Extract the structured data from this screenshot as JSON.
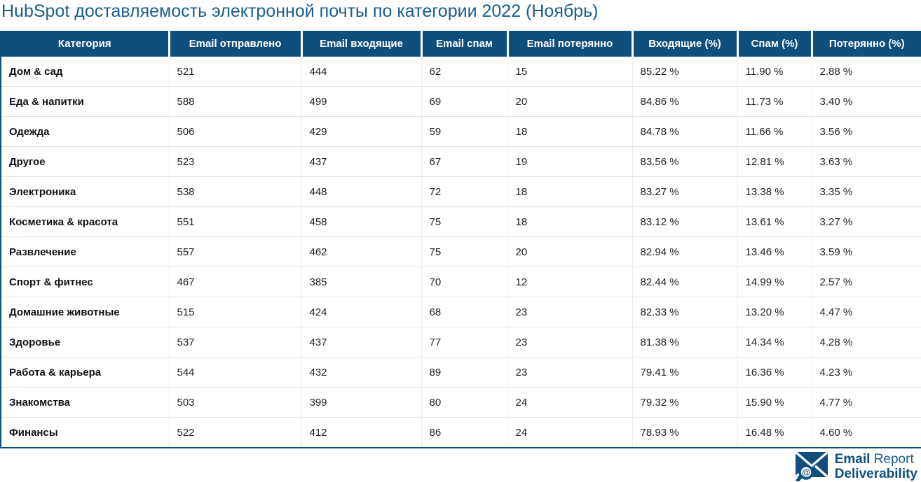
{
  "page": {
    "title": "HubSpot доставляемость электронной почты по категории 2022 (Ноябрь)"
  },
  "colors": {
    "header_background": "#0f4f7d",
    "title_text": "#1a5e8c",
    "table_border": "#0f4f7d",
    "row_divider": "#e3e3e3",
    "logo_blue": "#0f4f7d"
  },
  "table": {
    "columns": [
      "Категория",
      "Email отправлено",
      "Email входящие",
      "Email спам",
      "Email потерянно",
      "Входящие (%)",
      "Спам (%)",
      "Потерянно (%)"
    ],
    "rows": [
      [
        "Дом & сад",
        "521",
        "444",
        "62",
        "15",
        "85.22 %",
        "11.90 %",
        "2.88 %"
      ],
      [
        "Еда & напитки",
        "588",
        "499",
        "69",
        "20",
        "84.86 %",
        "11.73 %",
        "3.40 %"
      ],
      [
        "Одежда",
        "506",
        "429",
        "59",
        "18",
        "84.78 %",
        "11.66 %",
        "3.56 %"
      ],
      [
        "Другое",
        "523",
        "437",
        "67",
        "19",
        "83.56 %",
        "12.81 %",
        "3.63 %"
      ],
      [
        "Электроника",
        "538",
        "448",
        "72",
        "18",
        "83.27 %",
        "13.38 %",
        "3.35 %"
      ],
      [
        "Косметика & красота",
        "551",
        "458",
        "75",
        "18",
        "83.12 %",
        "13.61 %",
        "3.27 %"
      ],
      [
        "Развлечение",
        "557",
        "462",
        "75",
        "20",
        "82.94 %",
        "13.46 %",
        "3.59 %"
      ],
      [
        "Спорт & фитнес",
        "467",
        "385",
        "70",
        "12",
        "82.44 %",
        "14.99 %",
        "2.57 %"
      ],
      [
        "Домашние животные",
        "515",
        "424",
        "68",
        "23",
        "82.33 %",
        "13.20 %",
        "4.47 %"
      ],
      [
        "Здоровье",
        "537",
        "437",
        "77",
        "23",
        "81.38 %",
        "14.34 %",
        "4.28 %"
      ],
      [
        "Работа & карьера",
        "544",
        "432",
        "89",
        "23",
        "79.41 %",
        "16.36 %",
        "4.23 %"
      ],
      [
        "Знакомства",
        "503",
        "399",
        "80",
        "24",
        "79.32 %",
        "15.90 %",
        "4.77 %"
      ],
      [
        "Финансы",
        "522",
        "412",
        "86",
        "24",
        "78.93 %",
        "16.48 %",
        "4.60 %"
      ]
    ]
  },
  "footer": {
    "logo_word1": "Email",
    "logo_word2": "Report",
    "logo_line2": "Deliverability",
    "magnifier_symbol": "@"
  },
  "chart_data": {
    "type": "table",
    "title": "HubSpot доставляемость электронной почты по категории 2022 (Ноябрь)",
    "columns": [
      "Категория",
      "Email отправлено",
      "Email входящие",
      "Email спам",
      "Email потерянно",
      "Входящие (%)",
      "Спам (%)",
      "Потерянно (%)"
    ],
    "rows": [
      {
        "category": "Дом & сад",
        "sent": 521,
        "inbox": 444,
        "spam": 62,
        "lost": 15,
        "inbox_pct": 85.22,
        "spam_pct": 11.9,
        "lost_pct": 2.88
      },
      {
        "category": "Еда & напитки",
        "sent": 588,
        "inbox": 499,
        "spam": 69,
        "lost": 20,
        "inbox_pct": 84.86,
        "spam_pct": 11.73,
        "lost_pct": 3.4
      },
      {
        "category": "Одежда",
        "sent": 506,
        "inbox": 429,
        "spam": 59,
        "lost": 18,
        "inbox_pct": 84.78,
        "spam_pct": 11.66,
        "lost_pct": 3.56
      },
      {
        "category": "Другое",
        "sent": 523,
        "inbox": 437,
        "spam": 67,
        "lost": 19,
        "inbox_pct": 83.56,
        "spam_pct": 12.81,
        "lost_pct": 3.63
      },
      {
        "category": "Электроника",
        "sent": 538,
        "inbox": 448,
        "spam": 72,
        "lost": 18,
        "inbox_pct": 83.27,
        "spam_pct": 13.38,
        "lost_pct": 3.35
      },
      {
        "category": "Косметика & красота",
        "sent": 551,
        "inbox": 458,
        "spam": 75,
        "lost": 18,
        "inbox_pct": 83.12,
        "spam_pct": 13.61,
        "lost_pct": 3.27
      },
      {
        "category": "Развлечение",
        "sent": 557,
        "inbox": 462,
        "spam": 75,
        "lost": 20,
        "inbox_pct": 82.94,
        "spam_pct": 13.46,
        "lost_pct": 3.59
      },
      {
        "category": "Спорт & фитнес",
        "sent": 467,
        "inbox": 385,
        "spam": 70,
        "lost": 12,
        "inbox_pct": 82.44,
        "spam_pct": 14.99,
        "lost_pct": 2.57
      },
      {
        "category": "Домашние животные",
        "sent": 515,
        "inbox": 424,
        "spam": 68,
        "lost": 23,
        "inbox_pct": 82.33,
        "spam_pct": 13.2,
        "lost_pct": 4.47
      },
      {
        "category": "Здоровье",
        "sent": 537,
        "inbox": 437,
        "spam": 77,
        "lost": 23,
        "inbox_pct": 81.38,
        "spam_pct": 14.34,
        "lost_pct": 4.28
      },
      {
        "category": "Работа & карьера",
        "sent": 544,
        "inbox": 432,
        "spam": 89,
        "lost": 23,
        "inbox_pct": 79.41,
        "spam_pct": 16.36,
        "lost_pct": 4.23
      },
      {
        "category": "Знакомства",
        "sent": 503,
        "inbox": 399,
        "spam": 80,
        "lost": 24,
        "inbox_pct": 79.32,
        "spam_pct": 15.9,
        "lost_pct": 4.77
      },
      {
        "category": "Финансы",
        "sent": 522,
        "inbox": 412,
        "spam": 86,
        "lost": 24,
        "inbox_pct": 78.93,
        "spam_pct": 16.48,
        "lost_pct": 4.6
      }
    ]
  }
}
